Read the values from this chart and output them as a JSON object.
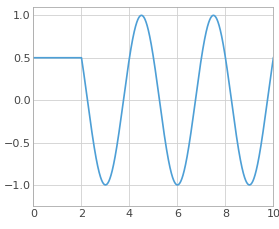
{
  "hold_start": 0,
  "hold_end": 2.0,
  "hold_value": 0.5,
  "sine_start": 2.0,
  "sine_end": 10.0,
  "sine_amplitude": 1.0,
  "period": 3.0,
  "phase": 2.617993878,
  "xlim": [
    0,
    10
  ],
  "ylim": [
    -1.25,
    1.1
  ],
  "xticks": [
    0,
    2,
    4,
    6,
    8,
    10
  ],
  "yticks": [
    -1.0,
    -0.5,
    0,
    0.5,
    1.0
  ],
  "line_color": "#4d9fd6",
  "line_width": 1.2,
  "grid_color": "#d0d0d0",
  "bg_color": "#ffffff",
  "tick_label_fontsize": 8,
  "tick_color": "#444444"
}
